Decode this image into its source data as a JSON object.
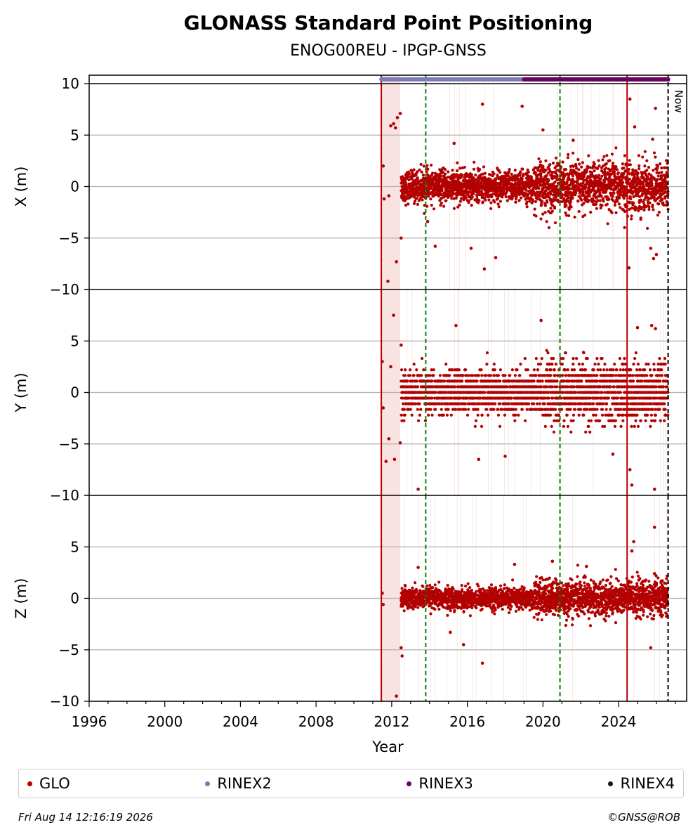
{
  "title": "GLONASS Standard Point Positioning",
  "subtitle": "ENOG00REU - IPGP-GNSS",
  "footer": {
    "timestamp": "Fri Aug 14 12:16:19 2026",
    "credit": "©GNSS@ROB"
  },
  "colors": {
    "glo": "#b30000",
    "rinex2": "#7b7bb8",
    "rinex3": "#6b0060",
    "rinex4": "#2a0a1e",
    "event_green": "#008000",
    "event_red": "#c00000",
    "now_line": "#000000",
    "gap_shade": "#f5d5d5",
    "grid": "#b0b0b0"
  },
  "legend": [
    {
      "label": "GLO",
      "color": "#b30000"
    },
    {
      "label": "RINEX2",
      "color": "#7b7bb8"
    },
    {
      "label": "RINEX3",
      "color": "#6b0060"
    },
    {
      "label": "RINEX4",
      "color": "#2a0a1e"
    }
  ],
  "chart_data": {
    "type": "scatter",
    "xlabel": "Year",
    "xlim": [
      1996,
      2027.6
    ],
    "xticks": [
      1996,
      2000,
      2004,
      2008,
      2012,
      2016,
      2020,
      2024
    ],
    "now_label": "Now",
    "now_year": 2026.62,
    "data_start": 2011.45,
    "shaded_interval": [
      2011.45,
      2012.45
    ],
    "events": [
      {
        "year": 2011.45,
        "style": "dashed",
        "color": "green"
      },
      {
        "year": 2011.45,
        "style": "solid",
        "color": "red"
      },
      {
        "year": 2013.8,
        "style": "dashed",
        "color": "green"
      },
      {
        "year": 2020.9,
        "style": "dashed",
        "color": "green"
      },
      {
        "year": 2024.45,
        "style": "solid",
        "color": "red"
      }
    ],
    "rinex_bars": [
      {
        "name": "RINEX2",
        "start": 2011.45,
        "end": 2026.62
      },
      {
        "name": "RINEX3",
        "start": 2019.0,
        "end": 2026.62
      }
    ],
    "panels": [
      {
        "ylabel": "X (m)",
        "ylim": [
          -10,
          10
        ],
        "yticks": [
          10,
          5,
          0,
          -5,
          -10
        ],
        "base_noise": 0.75,
        "late_noise": 1.2,
        "outliers": [
          {
            "x": 2011.55,
            "y": 2.0
          },
          {
            "x": 2011.6,
            "y": -1.2
          },
          {
            "x": 2011.8,
            "y": -9.2
          },
          {
            "x": 2011.85,
            "y": -0.9
          },
          {
            "x": 2011.95,
            "y": 5.9
          },
          {
            "x": 2012.1,
            "y": 6.1
          },
          {
            "x": 2012.2,
            "y": 5.7
          },
          {
            "x": 2012.25,
            "y": -7.3
          },
          {
            "x": 2012.3,
            "y": 6.7
          },
          {
            "x": 2012.45,
            "y": 7.1
          },
          {
            "x": 2012.5,
            "y": -5.0
          },
          {
            "x": 2016.2,
            "y": -6.0
          },
          {
            "x": 2016.9,
            "y": -8.0
          },
          {
            "x": 2017.5,
            "y": -6.9
          },
          {
            "x": 2016.8,
            "y": 8.0
          },
          {
            "x": 2018.9,
            "y": 7.8
          },
          {
            "x": 2020.0,
            "y": 5.5
          },
          {
            "x": 2024.55,
            "y": -7.9
          },
          {
            "x": 2024.6,
            "y": 8.5
          },
          {
            "x": 2024.85,
            "y": 5.8
          },
          {
            "x": 2025.7,
            "y": -6.0
          },
          {
            "x": 2025.85,
            "y": -7.0
          },
          {
            "x": 2025.95,
            "y": 7.6
          },
          {
            "x": 2026.0,
            "y": -6.6
          },
          {
            "x": 2025.8,
            "y": 4.6
          },
          {
            "x": 2014.3,
            "y": -5.8
          },
          {
            "x": 2013.9,
            "y": -3.4
          },
          {
            "x": 2015.3,
            "y": 4.2
          },
          {
            "x": 2021.6,
            "y": 4.5
          }
        ]
      },
      {
        "ylabel": "Y (m)",
        "ylim": [
          -10,
          10
        ],
        "yticks": [
          5,
          0,
          -5,
          -10
        ],
        "base_noise": 1.0,
        "late_noise": 1.4,
        "outliers": [
          {
            "x": 2011.5,
            "y": 3.0
          },
          {
            "x": 2011.55,
            "y": -1.5
          },
          {
            "x": 2011.6,
            "y": -10.5
          },
          {
            "x": 2011.7,
            "y": -6.7
          },
          {
            "x": 2011.85,
            "y": -4.5
          },
          {
            "x": 2011.95,
            "y": 2.5
          },
          {
            "x": 2012.1,
            "y": 7.5
          },
          {
            "x": 2012.15,
            "y": -6.5
          },
          {
            "x": 2012.35,
            "y": -10.2
          },
          {
            "x": 2012.45,
            "y": -4.9
          },
          {
            "x": 2012.5,
            "y": 4.6
          },
          {
            "x": 2013.4,
            "y": -9.4
          },
          {
            "x": 2014.3,
            "y": 10.9
          },
          {
            "x": 2015.4,
            "y": 6.5
          },
          {
            "x": 2016.6,
            "y": -6.5
          },
          {
            "x": 2019.9,
            "y": 7.0
          },
          {
            "x": 2023.7,
            "y": -6.0
          },
          {
            "x": 2024.6,
            "y": -7.5
          },
          {
            "x": 2024.7,
            "y": -9.0
          },
          {
            "x": 2025.75,
            "y": 6.5
          },
          {
            "x": 2025.9,
            "y": -9.4
          },
          {
            "x": 2025.95,
            "y": 6.2
          },
          {
            "x": 2025.0,
            "y": 6.3
          },
          {
            "x": 2018.0,
            "y": -6.2
          }
        ]
      },
      {
        "ylabel": "Z (m)",
        "ylim": [
          -10,
          10
        ],
        "yticks": [
          5,
          0,
          -5,
          -10
        ],
        "base_noise": 0.5,
        "late_noise": 0.85,
        "outliers": [
          {
            "x": 2011.5,
            "y": 0.5
          },
          {
            "x": 2011.55,
            "y": -0.6
          },
          {
            "x": 2012.25,
            "y": -9.5
          },
          {
            "x": 2012.5,
            "y": -4.8
          },
          {
            "x": 2012.55,
            "y": -5.6
          },
          {
            "x": 2013.4,
            "y": 3.0
          },
          {
            "x": 2015.1,
            "y": -3.3
          },
          {
            "x": 2015.8,
            "y": -4.5
          },
          {
            "x": 2016.8,
            "y": -6.3
          },
          {
            "x": 2020.5,
            "y": 3.6
          },
          {
            "x": 2018.5,
            "y": 3.3
          },
          {
            "x": 2024.8,
            "y": 5.5
          },
          {
            "x": 2024.7,
            "y": 4.6
          },
          {
            "x": 2025.9,
            "y": 6.9
          },
          {
            "x": 2025.7,
            "y": -4.8
          },
          {
            "x": 2025.9,
            "y": 2.4
          },
          {
            "x": 2022.3,
            "y": 3.1
          }
        ]
      }
    ]
  }
}
